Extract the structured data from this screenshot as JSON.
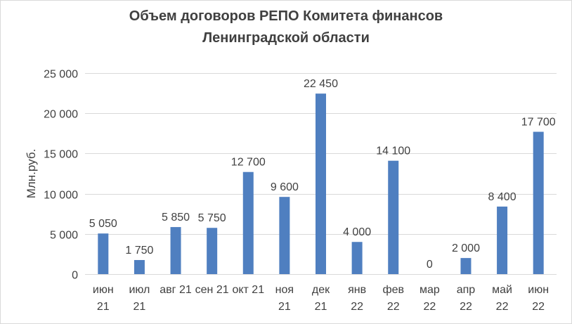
{
  "chart_data": {
    "type": "bar",
    "title": "Объем  договоров РЕПО Комитета финансов\nЛенинградской области",
    "ylabel": "Млн.руб.",
    "xlabel": "",
    "categories": [
      [
        "июн",
        "21"
      ],
      [
        "июл",
        "21"
      ],
      [
        "авг 21"
      ],
      [
        "сен 21"
      ],
      [
        "окт 21"
      ],
      [
        "ноя",
        "21"
      ],
      [
        "дек",
        "21"
      ],
      [
        "янв",
        "22"
      ],
      [
        "фев",
        "22"
      ],
      [
        "мар",
        "22"
      ],
      [
        "апр",
        "22"
      ],
      [
        "май",
        "22"
      ],
      [
        "июн",
        "22"
      ]
    ],
    "values": [
      5050,
      1750,
      5850,
      5750,
      12700,
      9600,
      22450,
      4000,
      14100,
      0,
      2000,
      8400,
      17700
    ],
    "data_labels": [
      "5 050",
      "1 750",
      "5 850",
      "5 750",
      "12 700",
      "9 600",
      "22 450",
      "4 000",
      "14 100",
      "0",
      "2 000",
      "8 400",
      "17 700"
    ],
    "ylim": [
      0,
      25000
    ],
    "yticks": [
      0,
      5000,
      10000,
      15000,
      20000,
      25000
    ],
    "ytick_labels": [
      "0",
      "5 000",
      "10 000",
      "15 000",
      "20 000",
      "25 000"
    ],
    "grid": true,
    "colors": {
      "bar": "#4f7fc0",
      "grid": "#d9d9d9",
      "text": "#404040",
      "axis": "#d9d9d9"
    }
  }
}
